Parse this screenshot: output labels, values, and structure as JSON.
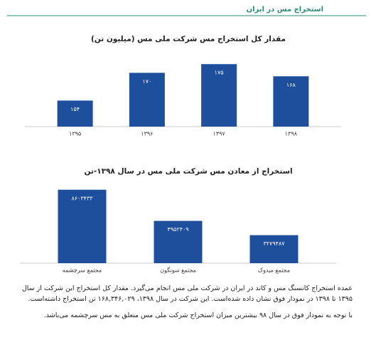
{
  "header": {
    "title": "استخراج مس در ایران"
  },
  "chart_data": [
    {
      "type": "bar",
      "title": "مقدار کل استخراج مس شرکت ملی مس (میلیون تن)",
      "categories": [
        "۱۳۹۵",
        "۱۳۹۶",
        "۱۳۹۷",
        "۱۳۹۸"
      ],
      "values": [
        154,
        170,
        175,
        168
      ],
      "value_labels": [
        "۱۵۴",
        "۱۷۰",
        "۱۷۵",
        "۱۶۸"
      ],
      "color": "#1d4f9c",
      "ylim": [
        139,
        180
      ]
    },
    {
      "type": "bar",
      "title": "استخراج از معادن مس  شرکت ملی مس در سال ۱۳۹۸-تن",
      "categories": [
        "مجتمع سرچشمه",
        "مجتمع سونگون",
        "مجتمع میدوک"
      ],
      "values": [
        8603433,
        4952409,
        3279487
      ],
      "value_labels": [
        "۸۶۰۳۴۳۳",
        "۴۹۵۲۴۰۹",
        "۳۲۷۹۴۸۷"
      ],
      "color": "#1d4f9c",
      "ylim": [
        0,
        9000000
      ]
    }
  ],
  "paragraphs": [
    "عمده استخراج کانسنگ مس و کاتد در ایران در شرکت ملی مس انجام می‌گیرد. مقدار کل استخراج این شرکت از سال ۱۳۹۵ تا ۱۳۹۸ در نمودار فوق نشان داده شده‌است. این شرکت در سال ۱۳۹۸، ۱۶۸,۳۴۶,۰۲۹ تن استخراج داشته‌است.",
    "با توجه به نمودار فوق در سال ۹۸ بیشترین میزان استخراج شرکت ملی مس متعلق به مس سرچشمه می‌باشد."
  ]
}
